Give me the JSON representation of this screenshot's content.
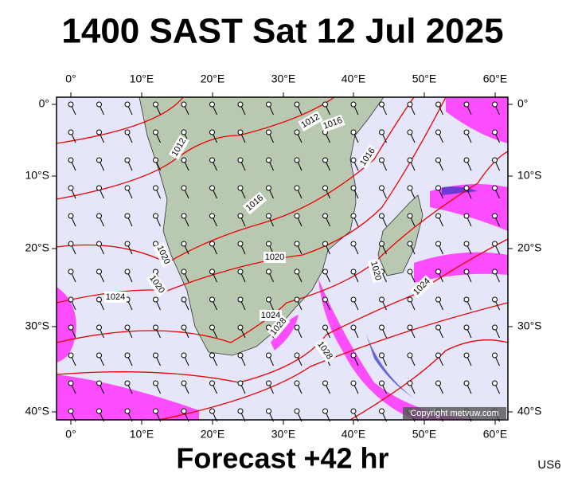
{
  "title": "1400 SAST Sat 12 Jul 2025",
  "footer": "Forecast +42 hr",
  "code": "US6",
  "copyright": "Copyright metvuw.com",
  "lon_labels": [
    "0°",
    "10°E",
    "20°E",
    "30°E",
    "40°E",
    "50°E",
    "60°E"
  ],
  "lat_labels": [
    "0°",
    "10°S",
    "20°S",
    "30°S",
    "40°S"
  ],
  "isobar_labels": [
    "1012",
    "1012",
    "1016",
    "1016",
    "1016",
    "1020",
    "1020",
    "1020",
    "1024",
    "1024",
    "1028",
    "1028",
    "1020",
    "1024"
  ]
}
